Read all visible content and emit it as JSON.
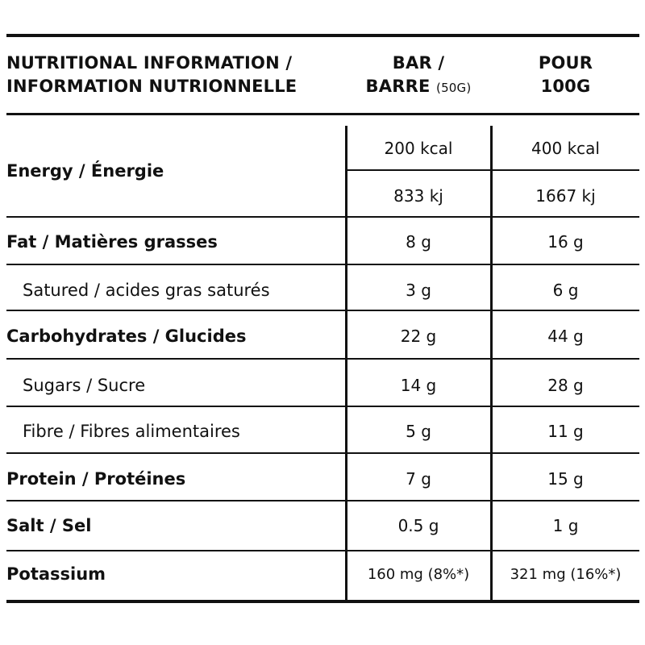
{
  "header": {
    "label_line1": "NUTRITIONAL INFORMATION /",
    "label_line2": "INFORMATION NUTRIONNELLE",
    "bar_line1": "BAR /",
    "bar_line2": "BARRE",
    "bar_size": "(50G)",
    "per100_line1": "POUR",
    "per100_line2": "100G"
  },
  "rows": {
    "energy": {
      "label": "Energy / Énergie",
      "bar_kcal": "200 kcal",
      "per100_kcal": "400 kcal",
      "bar_kj": "833 kj",
      "per100_kj": "1667 kj"
    },
    "fat": {
      "label": "Fat / Matières grasses",
      "bar": "8 g",
      "per100": "16 g"
    },
    "saturated": {
      "label": "Satured / acides gras saturés",
      "bar": "3 g",
      "per100": "6 g"
    },
    "carbs": {
      "label": "Carbohydrates / Glucides",
      "bar": "22 g",
      "per100": "44 g"
    },
    "sugars": {
      "label": "Sugars / Sucre",
      "bar": "14 g",
      "per100": "28 g"
    },
    "fibre": {
      "label": "Fibre / Fibres alimentaires",
      "bar": "5 g",
      "per100": "11 g"
    },
    "protein": {
      "label": "Protein / Protéines",
      "bar": "7 g",
      "per100": "15 g"
    },
    "salt": {
      "label": "Salt / Sel",
      "bar": "0.5 g",
      "per100": "1 g"
    },
    "potassium": {
      "label": "Potassium",
      "bar": "160 mg (8%*)",
      "per100": "321 mg (16%*)"
    }
  }
}
